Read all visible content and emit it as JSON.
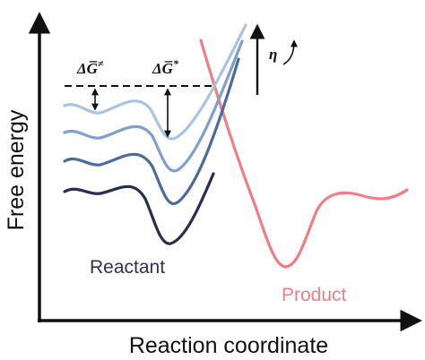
{
  "axes": {
    "x_label": "Reaction coordinate",
    "y_label": "Free energy"
  },
  "labels": {
    "reactant": "Reactant",
    "product": "Product",
    "barrier_activation_symbol": "ΔG̅",
    "barrier_activation_superscript": "≠",
    "barrier_intrinsic_symbol": "ΔG̅",
    "barrier_intrinsic_superscript": "*",
    "overpotential": "η"
  },
  "colors": {
    "axis": "#111111",
    "reactant_label": "#2f2f5c",
    "product_curve": "#f07e84",
    "product_label": "#f07e84",
    "reactant_curves": [
      "#a9c3e2",
      "#7f9fcc",
      "#4d6aa0",
      "#262e55"
    ]
  },
  "icons": {
    "overpotential_increase": "curved-up-arrow-icon"
  }
}
